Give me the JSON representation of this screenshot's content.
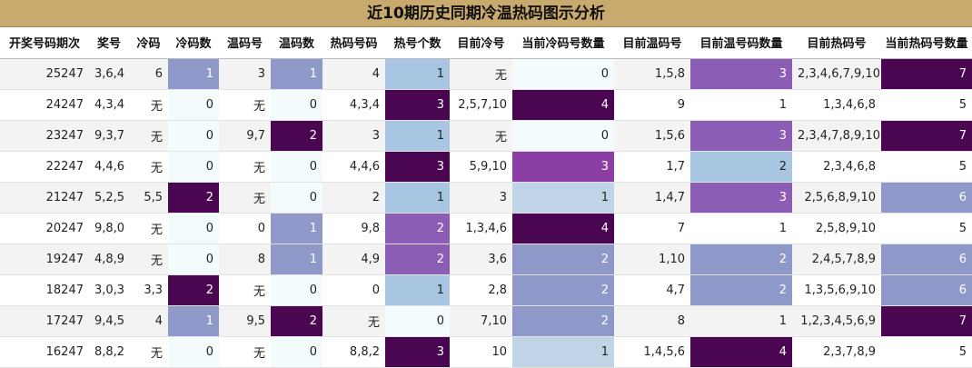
{
  "title": "近10期历史同期冷温热码图示分析",
  "headers": [
    "开奖号码期次",
    "奖号",
    "冷码",
    "冷码数",
    "温码号",
    "温码数",
    "热码号码",
    "热号个数",
    "目前冷号",
    "当前冷码号数量",
    "目前温码号",
    "目前温号码数量",
    "目前热码号",
    "当前热码号数量"
  ],
  "rows": [
    [
      "25247",
      "3,6,4",
      "6",
      "1",
      "3",
      "1",
      "4",
      "1",
      "无",
      "0",
      "1,5,8",
      "3",
      "2,3,4,6,7,9,10",
      "7"
    ],
    [
      "24247",
      "4,3,4",
      "无",
      "0",
      "无",
      "0",
      "4,3,4",
      "3",
      "2,5,7,10",
      "4",
      "9",
      "1",
      "1,3,4,6,8",
      "5"
    ],
    [
      "23247",
      "9,3,7",
      "无",
      "0",
      "9,7",
      "2",
      "3",
      "1",
      "无",
      "0",
      "1,5,6",
      "3",
      "2,3,4,7,8,9,10",
      "7"
    ],
    [
      "22247",
      "4,4,6",
      "无",
      "0",
      "无",
      "0",
      "4,4,6",
      "3",
      "5,9,10",
      "3",
      "1,7",
      "2",
      "2,3,4,6,8",
      "5"
    ],
    [
      "21247",
      "5,2,5",
      "5,5",
      "2",
      "无",
      "0",
      "2",
      "1",
      "3",
      "1",
      "1,4,7",
      "3",
      "2,5,6,8,9,10",
      "6"
    ],
    [
      "20247",
      "9,8,0",
      "无",
      "0",
      "0",
      "1",
      "9,8",
      "2",
      "1,3,4,6",
      "4",
      "7",
      "1",
      "2,5,8,9,10",
      "5"
    ],
    [
      "19247",
      "4,8,9",
      "无",
      "0",
      "8",
      "1",
      "4,9",
      "2",
      "3,6",
      "2",
      "1,10",
      "2",
      "2,4,5,7,8,9",
      "6"
    ],
    [
      "18247",
      "3,0,3",
      "3,3",
      "2",
      "无",
      "0",
      "0",
      "1",
      "2,8",
      "2",
      "4,7",
      "2",
      "1,3,5,6,9,10",
      "6"
    ],
    [
      "17247",
      "9,4,5",
      "4",
      "1",
      "9,5",
      "2",
      "无",
      "0",
      "7,10",
      "2",
      "8",
      "1",
      "1,2,3,4,5,6,9",
      "7"
    ],
    [
      "16247",
      "8,8,2",
      "无",
      "0",
      "无",
      "0",
      "8,8,2",
      "3",
      "10",
      "1",
      "1,4,5,6",
      "4",
      "2,3,7,8,9",
      "5"
    ]
  ],
  "heat": [
    [
      "",
      "",
      "",
      "h1p",
      "",
      "h1p",
      "",
      "sky",
      "",
      "h0",
      "",
      "h2",
      "",
      "h4"
    ],
    [
      "",
      "",
      "",
      "h0",
      "",
      "h0",
      "",
      "h4",
      "",
      "h4",
      "",
      "",
      "",
      ""
    ],
    [
      "",
      "",
      "",
      "h0",
      "",
      "h4",
      "",
      "sky",
      "",
      "h0",
      "",
      "h2",
      "",
      "h4"
    ],
    [
      "",
      "",
      "",
      "h0",
      "",
      "h0",
      "",
      "h4",
      "",
      "h3",
      "",
      "sky",
      "",
      ""
    ],
    [
      "",
      "",
      "",
      "h4",
      "",
      "h0",
      "",
      "sky",
      "",
      "h1",
      "",
      "h2",
      "",
      "h1p"
    ],
    [
      "",
      "",
      "",
      "h0",
      "",
      "h1p",
      "",
      "h2",
      "",
      "h4",
      "",
      "",
      "",
      ""
    ],
    [
      "",
      "",
      "",
      "h0",
      "",
      "h1p",
      "",
      "h2",
      "",
      "h1p",
      "",
      "h1p",
      "",
      "h1p"
    ],
    [
      "",
      "",
      "",
      "h4",
      "",
      "h0",
      "",
      "sky",
      "",
      "h1p",
      "",
      "h1p",
      "",
      "h1p"
    ],
    [
      "",
      "",
      "",
      "h1p",
      "",
      "h4",
      "",
      "h0",
      "",
      "h1p",
      "",
      "",
      "",
      "h4"
    ],
    [
      "",
      "",
      "",
      "h0",
      "",
      "h0",
      "",
      "h4",
      "",
      "h1",
      "",
      "h4",
      "",
      ""
    ]
  ],
  "colors": {
    "title_bg": "#c8a96e",
    "heat_0": "#f4fbfd",
    "heat_light": "#c0d4e8",
    "heat_sky": "#a8c5e2",
    "heat_periwinkle": "#8e98c9",
    "heat_purple": "#8c5db5",
    "heat_dark": "#4a0650"
  }
}
